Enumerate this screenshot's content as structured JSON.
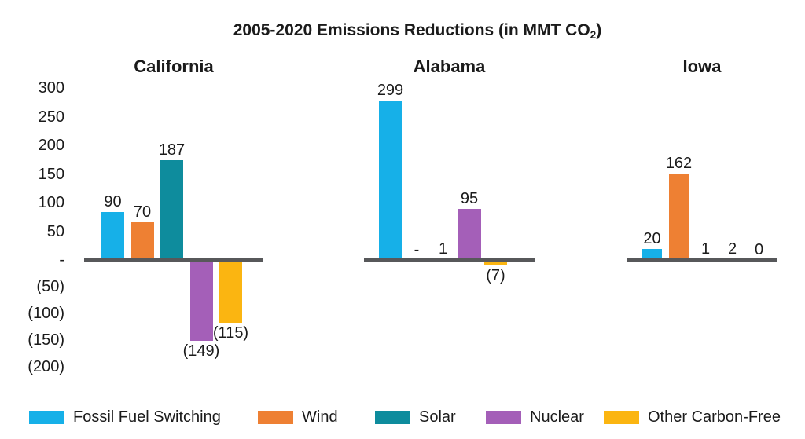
{
  "chart_data": {
    "type": "bar",
    "title": "2005-2020 Emissions Reductions (in MMT CO2)",
    "title_rich": {
      "main": "2005-2020 Emissions Reductions (in MMT CO",
      "subscript": "2",
      "suffix": ")"
    },
    "xlabel": "",
    "ylabel": "",
    "ylim": [
      -200,
      300
    ],
    "ytick_step": 50,
    "grid": false,
    "legend_position": "bottom",
    "negative_number_style": "parentheses",
    "yticks": [
      {
        "value": 300,
        "label": "300"
      },
      {
        "value": 250,
        "label": "250"
      },
      {
        "value": 200,
        "label": "200"
      },
      {
        "value": 150,
        "label": "150"
      },
      {
        "value": 100,
        "label": "100"
      },
      {
        "value": 50,
        "label": "50"
      },
      {
        "value": 0,
        "label": "-"
      },
      {
        "value": -50,
        "label": "(50)"
      },
      {
        "value": -100,
        "label": "(100)"
      },
      {
        "value": -150,
        "label": "(150)"
      },
      {
        "value": -200,
        "label": "(200)"
      }
    ],
    "categories": [
      "California",
      "Alabama",
      "Iowa"
    ],
    "series": [
      {
        "name": "Fossil Fuel Switching",
        "color": "#16B0E8",
        "values": [
          90,
          299,
          20
        ]
      },
      {
        "name": "Wind",
        "color": "#EE8033",
        "values": [
          70,
          0,
          162
        ]
      },
      {
        "name": "Solar",
        "color": "#0E8C9D",
        "values": [
          187,
          1,
          1
        ]
      },
      {
        "name": "Nuclear",
        "color": "#A45FB8",
        "values": [
          -149,
          95,
          2
        ]
      },
      {
        "name": "Other Carbon-Free",
        "color": "#FBB511",
        "values": [
          -115,
          -7,
          0
        ]
      }
    ],
    "panels": [
      {
        "name": "California",
        "bars": [
          {
            "series": "Fossil Fuel Switching",
            "value": 90,
            "label": "90"
          },
          {
            "series": "Wind",
            "value": 70,
            "label": "70"
          },
          {
            "series": "Solar",
            "value": 187,
            "label": "187"
          },
          {
            "series": "Nuclear",
            "value": -149,
            "label": "(149)"
          },
          {
            "series": "Other Carbon-Free",
            "value": -115,
            "label": "(115)"
          }
        ]
      },
      {
        "name": "Alabama",
        "bars": [
          {
            "series": "Fossil Fuel Switching",
            "value": 299,
            "label": "299"
          },
          {
            "series": "Wind",
            "value": 0,
            "label": "-"
          },
          {
            "series": "Solar",
            "value": 1,
            "label": "1"
          },
          {
            "series": "Nuclear",
            "value": 95,
            "label": "95"
          },
          {
            "series": "Other Carbon-Free",
            "value": -7,
            "label": "(7)"
          }
        ]
      },
      {
        "name": "Iowa",
        "bars": [
          {
            "series": "Fossil Fuel Switching",
            "value": 20,
            "label": "20"
          },
          {
            "series": "Wind",
            "value": 162,
            "label": "162"
          },
          {
            "series": "Solar",
            "value": 1,
            "label": "1"
          },
          {
            "series": "Nuclear",
            "value": 2,
            "label": "2"
          },
          {
            "series": "Other Carbon-Free",
            "value": 0,
            "label": "0"
          }
        ]
      }
    ],
    "legend": [
      {
        "label": "Fossil Fuel Switching",
        "color": "#16B0E8"
      },
      {
        "label": "Wind",
        "color": "#EE8033"
      },
      {
        "label": "Solar",
        "color": "#0E8C9D"
      },
      {
        "label": "Nuclear",
        "color": "#A45FB8"
      },
      {
        "label": "Other Carbon-Free",
        "color": "#FBB511"
      }
    ]
  },
  "colors": {
    "axis_line": "#57585A",
    "text": "#1b1b1b",
    "background": "#ffffff"
  }
}
